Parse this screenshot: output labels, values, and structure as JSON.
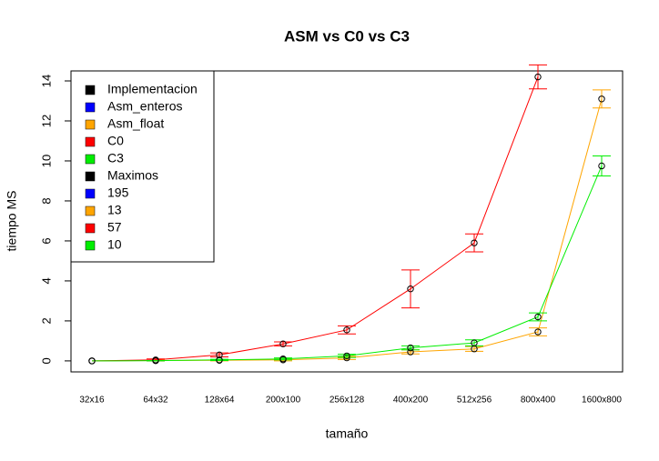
{
  "chart_data": {
    "type": "line",
    "title": "ASM vs C0 vs C3",
    "xlabel": "tamaño",
    "ylabel": "tiempo MS",
    "categories": [
      "32x16",
      "64x32",
      "128x64",
      "200x100",
      "256x128",
      "400x200",
      "512x256",
      "800x400",
      "1600x800"
    ],
    "series": [
      {
        "name": "Asm_float",
        "color": "#ffa500",
        "values": [
          0,
          0.02,
          0.03,
          0.05,
          0.15,
          0.45,
          0.6,
          1.45,
          13.1
        ],
        "errors": [
          0,
          0.02,
          0.03,
          0.05,
          0.08,
          0.1,
          0.12,
          0.2,
          0.45
        ]
      },
      {
        "name": "C0",
        "color": "#ff0000",
        "values": [
          0,
          0.05,
          0.3,
          0.85,
          1.55,
          3.6,
          5.9,
          14.2,
          null
        ],
        "errors": [
          0,
          0.05,
          0.1,
          0.1,
          0.2,
          0.95,
          0.45,
          0.6,
          null
        ]
      },
      {
        "name": "C3",
        "color": "#00ee00",
        "values": [
          0,
          0.01,
          0.05,
          0.1,
          0.25,
          0.65,
          0.9,
          2.2,
          9.75
        ],
        "errors": [
          0,
          0.01,
          0.03,
          0.05,
          0.08,
          0.1,
          0.15,
          0.2,
          0.5
        ]
      }
    ],
    "legend": [
      {
        "name": "Implementacion",
        "color": "#000000"
      },
      {
        "name": "Asm_enteros",
        "color": "#0000ff"
      },
      {
        "name": "Asm_float",
        "color": "#ffa500"
      },
      {
        "name": "C0",
        "color": "#ff0000"
      },
      {
        "name": "C3",
        "color": "#00ee00"
      },
      {
        "name": "Maximos",
        "color": "#000000"
      },
      {
        "name": "195",
        "color": "#0000ff"
      },
      {
        "name": "13",
        "color": "#ffa500"
      },
      {
        "name": "57",
        "color": "#ff0000"
      },
      {
        "name": "10",
        "color": "#00ee00"
      }
    ],
    "legend_position": "top-left",
    "ylim": [
      -0.55,
      14.5
    ],
    "yticks": [
      0,
      2,
      4,
      6,
      8,
      10,
      12,
      14
    ]
  }
}
